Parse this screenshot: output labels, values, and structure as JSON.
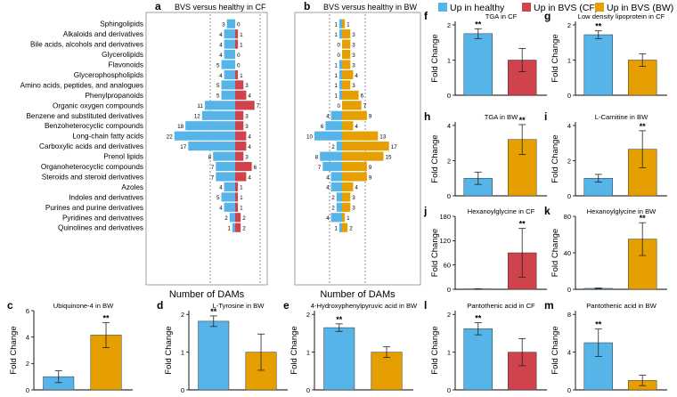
{
  "colors": {
    "healthy": "#56b4e9",
    "bvs_cf": "#d0434d",
    "bvs_bw": "#e69f00",
    "axis": "#000000",
    "frame": "#888888",
    "dash": "#444444"
  },
  "legend": {
    "items": [
      {
        "label": "Up in healthy",
        "color": "#56b4e9"
      },
      {
        "label": "Up in BVS (CF)",
        "color": "#d0434d"
      },
      {
        "label": "Up in BVS (BW)",
        "color": "#e69f00"
      }
    ]
  },
  "chart_data": [
    {
      "id": "a",
      "type": "bar",
      "orientation": "diverging-horizontal",
      "panel_letter": "a",
      "title": "BVS versus healthy in CF",
      "xlabel": "Number of DAMs",
      "categories": [
        "Sphingolipids",
        "Alkaloids and derivatives",
        "Bile acids, alcohols and derivatives",
        "Glycerolipids",
        "Flavonoids",
        "Glycerophospholipids",
        "Amino acids, peptides, and analogues",
        "Phenylpropanoids",
        "Organic oxygen compounds",
        "Benzene and substituted derivatives",
        "Benzoheterocyclic compounds",
        "Long-chain fatty acids",
        "Carboxylic acids and derivatives",
        "Prenol lipids",
        "Organoheterocyclic compounds",
        "Steroids and steroid derivatives",
        "Azoles",
        "Indoles and derivatives",
        "Purines and purine derivatives",
        "Pyridines and derivatives",
        "Quinolines and derivatives"
      ],
      "series": [
        {
          "name": "Up in healthy",
          "values": [
            3,
            4,
            4,
            4,
            5,
            4,
            5,
            5,
            11,
            12,
            18,
            22,
            17,
            8,
            7,
            7,
            4,
            5,
            4,
            2,
            1
          ]
        },
        {
          "name": "Up in BVS (CF)",
          "values": [
            0,
            1,
            1,
            0,
            0,
            1,
            3,
            4,
            7,
            3,
            3,
            4,
            4,
            3,
            6,
            4,
            1,
            1,
            1,
            2,
            2
          ]
        }
      ]
    },
    {
      "id": "b",
      "type": "bar",
      "orientation": "diverging-horizontal",
      "panel_letter": "b",
      "title": "BVS versus healthy in BW",
      "xlabel": "Number of DAMs",
      "series": [
        {
          "name": "Up in healthy",
          "values": [
            1,
            1,
            0,
            0,
            1,
            1,
            1,
            1,
            0,
            4,
            6,
            10,
            2,
            8,
            7,
            4,
            4,
            2,
            2,
            4,
            1
          ]
        },
        {
          "name": "Up in BVS (BW)",
          "values": [
            1,
            3,
            3,
            3,
            3,
            4,
            3,
            6,
            7,
            9,
            4,
            13,
            17,
            15,
            9,
            9,
            4,
            3,
            3,
            1,
            2
          ]
        }
      ]
    },
    {
      "id": "c",
      "type": "bar",
      "panel_letter": "c",
      "title": "Ubiquinone-4 in BW",
      "ylabel": "Fold Change",
      "ylim": [
        0,
        6
      ],
      "yticks": [
        "0",
        "2",
        "4",
        "6"
      ],
      "bars": [
        {
          "value": 1.0,
          "err": 0.45,
          "group": "healthy",
          "sig": ""
        },
        {
          "value": 4.15,
          "err": 0.95,
          "group": "bvs_bw",
          "sig": "**"
        }
      ]
    },
    {
      "id": "d",
      "type": "bar",
      "panel_letter": "d",
      "title": "L-Tyrosine in BW",
      "ylabel": "Fold Change",
      "ylim": [
        0,
        2.1
      ],
      "yticks": [
        "0",
        "1",
        "2"
      ],
      "bars": [
        {
          "value": 1.82,
          "err": 0.14,
          "group": "healthy",
          "sig": "**"
        },
        {
          "value": 1.0,
          "err": 0.48,
          "group": "bvs_bw",
          "sig": ""
        }
      ]
    },
    {
      "id": "e",
      "type": "bar",
      "panel_letter": "e",
      "title": "4-Hydroxyphenylpyruvic acid in BW",
      "ylabel": "Fold Change",
      "ylim": [
        0,
        2.1
      ],
      "yticks": [
        "0",
        "1",
        "2"
      ],
      "bars": [
        {
          "value": 1.65,
          "err": 0.1,
          "group": "healthy",
          "sig": "**"
        },
        {
          "value": 1.0,
          "err": 0.14,
          "group": "bvs_bw",
          "sig": ""
        }
      ]
    },
    {
      "id": "f",
      "type": "bar",
      "panel_letter": "f",
      "title": "TGA in CF",
      "ylabel": "Fold Change",
      "ylim": [
        0,
        2.1
      ],
      "yticks": [
        "0",
        "1",
        "2"
      ],
      "bars": [
        {
          "value": 1.75,
          "err": 0.14,
          "group": "healthy",
          "sig": "**"
        },
        {
          "value": 1.0,
          "err": 0.33,
          "group": "bvs_cf",
          "sig": ""
        }
      ]
    },
    {
      "id": "g",
      "type": "bar",
      "panel_letter": "g",
      "title": "Low density lipoprotein in CF",
      "ylabel": "Fold Change",
      "ylim": [
        0,
        2.1
      ],
      "yticks": [
        "0",
        "1",
        "2"
      ],
      "bars": [
        {
          "value": 1.72,
          "err": 0.11,
          "group": "healthy",
          "sig": "**"
        },
        {
          "value": 1.0,
          "err": 0.18,
          "group": "bvs_bw",
          "sig": ""
        }
      ]
    },
    {
      "id": "h",
      "type": "bar",
      "panel_letter": "h",
      "title": "TGA in BW",
      "ylabel": "Fold Change",
      "ylim": [
        0,
        4.2
      ],
      "yticks": [
        "0",
        "2",
        "4"
      ],
      "bars": [
        {
          "value": 1.0,
          "err": 0.35,
          "group": "healthy",
          "sig": ""
        },
        {
          "value": 3.2,
          "err": 0.85,
          "group": "bvs_bw",
          "sig": "**"
        }
      ]
    },
    {
      "id": "i",
      "type": "bar",
      "panel_letter": "i",
      "title": "L-Carnitine in BW",
      "ylabel": "Fold Change",
      "ylim": [
        0,
        4.2
      ],
      "yticks": [
        "0",
        "2",
        "4"
      ],
      "bars": [
        {
          "value": 1.0,
          "err": 0.22,
          "group": "healthy",
          "sig": ""
        },
        {
          "value": 2.65,
          "err": 1.05,
          "group": "bvs_bw",
          "sig": "**"
        }
      ]
    },
    {
      "id": "j",
      "type": "bar",
      "panel_letter": "j",
      "title": "Hexanoylglycine in CF",
      "ylabel": "Fold Change",
      "ylim": [
        0,
        180
      ],
      "yticks": [
        "0",
        "60",
        "120",
        "180"
      ],
      "bars": [
        {
          "value": 1.0,
          "err": 0.3,
          "group": "healthy",
          "sig": ""
        },
        {
          "value": 90,
          "err": 60,
          "group": "bvs_cf",
          "sig": "**"
        }
      ]
    },
    {
      "id": "k",
      "type": "bar",
      "panel_letter": "k",
      "title": "Hexanoylglycine in BW",
      "ylabel": "Fold Change",
      "ylim": [
        0,
        80
      ],
      "yticks": [
        "0",
        "40",
        "80"
      ],
      "bars": [
        {
          "value": 1.0,
          "err": 0.4,
          "group": "healthy",
          "sig": ""
        },
        {
          "value": 55,
          "err": 18,
          "group": "bvs_bw",
          "sig": "**"
        }
      ]
    },
    {
      "id": "l",
      "type": "bar",
      "panel_letter": "l",
      "title": "Pantothenic acid in CF",
      "ylabel": "Fold Change",
      "ylim": [
        0,
        2.1
      ],
      "yticks": [
        "0",
        "1",
        "2"
      ],
      "bars": [
        {
          "value": 1.62,
          "err": 0.16,
          "group": "healthy",
          "sig": "**"
        },
        {
          "value": 1.0,
          "err": 0.36,
          "group": "bvs_cf",
          "sig": ""
        }
      ]
    },
    {
      "id": "m",
      "type": "bar",
      "panel_letter": "m",
      "title": "Pantothenic acid in BW",
      "ylabel": "Fold Change",
      "ylim": [
        0,
        8.4
      ],
      "yticks": [
        "0",
        "4",
        "8"
      ],
      "bars": [
        {
          "value": 5.0,
          "err": 1.45,
          "group": "healthy",
          "sig": "**"
        },
        {
          "value": 1.0,
          "err": 0.55,
          "group": "bvs_bw",
          "sig": ""
        }
      ]
    }
  ]
}
